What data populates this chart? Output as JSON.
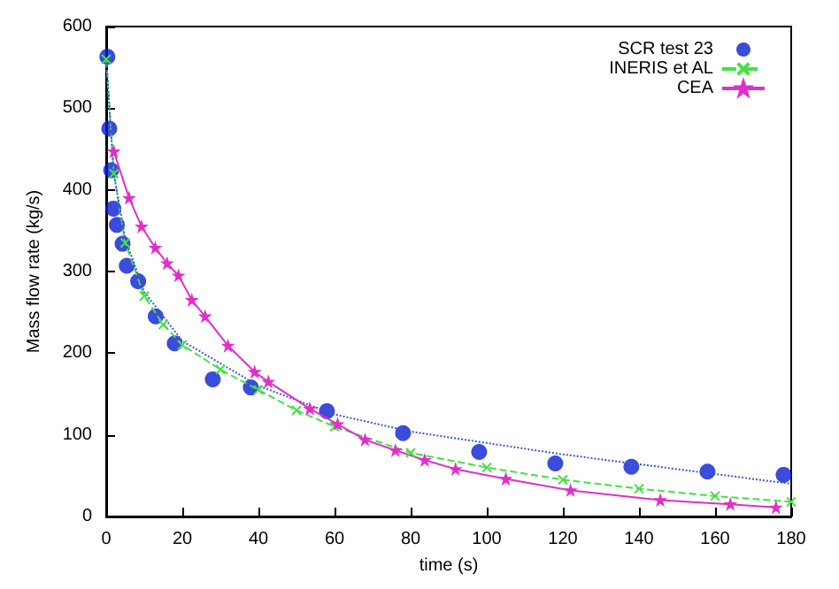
{
  "chart_data": {
    "type": "line",
    "xlabel": "time (s)",
    "ylabel": "Mass flow rate (kg/s)",
    "xlim": [
      0,
      180
    ],
    "xticks": [
      0,
      20,
      40,
      60,
      80,
      100,
      120,
      140,
      160,
      180
    ],
    "ylim": [
      0,
      600
    ],
    "yticks": [
      0,
      100,
      200,
      300,
      400,
      500,
      600
    ],
    "grid": false,
    "legend": "top right",
    "series": [
      {
        "name": "SCR test 23",
        "type": "scatter",
        "marker": "circle",
        "color": "#0a1ed2",
        "x": [
          0.3,
          0.8,
          1.3,
          1.9,
          2.8,
          4.3,
          5.4,
          8.4,
          13,
          18,
          28,
          38,
          58,
          78,
          98,
          118,
          138,
          158,
          178
        ],
        "values": [
          563,
          475,
          424,
          377,
          357,
          334,
          307,
          288,
          245,
          212,
          168,
          158,
          129,
          102,
          79,
          65,
          61,
          55,
          51
        ]
      },
      {
        "name": "INERIS et AL",
        "marker": "cross",
        "line_style": "dashed",
        "color": "#44e044",
        "x": [
          0,
          2,
          5,
          10,
          15,
          20,
          30,
          40,
          50,
          60,
          80,
          100,
          120,
          140,
          160,
          180
        ],
        "values": [
          560,
          420,
          335,
          270,
          235,
          210,
          180,
          155,
          130,
          110,
          78,
          60,
          45,
          34,
          25,
          18
        ]
      },
      {
        "marker": "none",
        "line_style": "dotted",
        "color": "#3a5ad0",
        "x": [
          0,
          2,
          5,
          10,
          20,
          40,
          60,
          80,
          100,
          120,
          140,
          160,
          180
        ],
        "values": [
          560,
          420,
          340,
          275,
          215,
          160,
          125,
          104,
          90,
          76,
          64,
          52,
          40
        ]
      },
      {
        "name": "CEA",
        "marker": "star",
        "line_style": "solid",
        "color": "#e030c8",
        "x": [
          2,
          6,
          9.3,
          12.9,
          16,
          19,
          22.5,
          26,
          32,
          39,
          42.6,
          53.5,
          60.8,
          68,
          76,
          83.7,
          91.8,
          105,
          122,
          145.6,
          164,
          176
        ],
        "values": [
          447,
          390,
          355,
          329,
          310,
          295,
          265,
          245,
          209,
          177,
          165,
          132,
          113,
          94,
          81,
          69,
          58,
          46,
          32,
          20,
          15,
          11
        ]
      }
    ]
  }
}
